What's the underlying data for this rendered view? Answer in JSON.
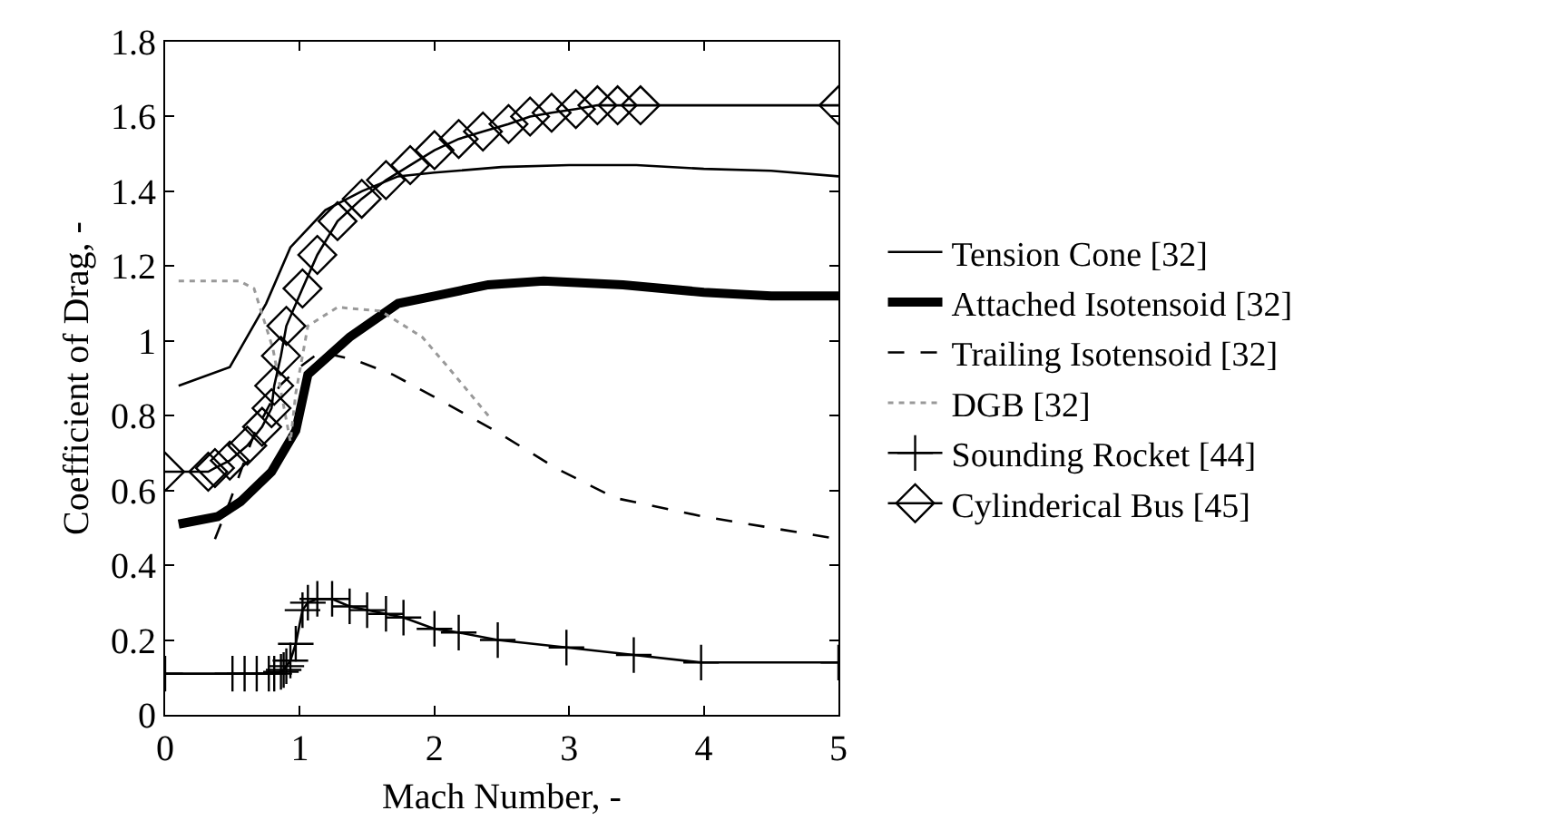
{
  "chart_data": {
    "type": "line",
    "xlabel": "Mach Number, -",
    "ylabel": "Coefficient of Drag, -",
    "xlim": [
      0,
      5
    ],
    "ylim": [
      0,
      1.8
    ],
    "xticks": [
      0,
      1,
      2,
      3,
      4,
      5
    ],
    "yticks": [
      0,
      0.2,
      0.4,
      0.6,
      0.8,
      1,
      1.2,
      1.4,
      1.6,
      1.8
    ],
    "grid": false,
    "legend": "right",
    "series": [
      {
        "name": "Tension Cone [32]",
        "color": "#000000",
        "line_style": "solid",
        "marker": "none",
        "x": [
          0.1,
          0.48,
          0.75,
          0.93,
          1.19,
          1.46,
          1.73,
          2.0,
          2.5,
          3.0,
          3.5,
          4.0,
          4.5,
          5.0
        ],
        "values": [
          0.88,
          0.93,
          1.1,
          1.25,
          1.35,
          1.4,
          1.44,
          1.45,
          1.465,
          1.47,
          1.47,
          1.46,
          1.455,
          1.44
        ]
      },
      {
        "name": "Attached Isotensoid [32]",
        "color": "#000000",
        "line_style": "solid",
        "marker": "none",
        "x": [
          0.1,
          0.39,
          0.56,
          0.79,
          0.97,
          1.06,
          1.37,
          1.73,
          2.0,
          2.4,
          2.81,
          3.4,
          4.0,
          4.5,
          5.0
        ],
        "values": [
          0.51,
          0.53,
          0.57,
          0.65,
          0.76,
          0.91,
          1.01,
          1.1,
          1.12,
          1.15,
          1.16,
          1.15,
          1.13,
          1.12,
          1.12
        ]
      },
      {
        "name": "Trailing Isotensoid [32]",
        "color": "#000000",
        "line_style": "dashed",
        "marker": "none",
        "x": [
          0.37,
          0.48,
          0.66,
          0.85,
          1.0,
          1.15,
          1.4,
          1.69,
          2.0,
          2.45,
          2.9,
          3.34,
          4.0,
          4.5,
          5.0
        ],
        "values": [
          0.47,
          0.57,
          0.75,
          0.88,
          0.93,
          0.97,
          0.95,
          0.91,
          0.85,
          0.76,
          0.66,
          0.58,
          0.53,
          0.5,
          0.47
        ]
      },
      {
        "name": "DGB [32]",
        "color": "#999999",
        "line_style": "dotted",
        "marker": "none",
        "x": [
          0.1,
          0.55,
          0.66,
          0.8,
          0.93,
          0.97,
          1.06,
          1.28,
          1.6,
          1.91,
          2.1,
          2.4
        ],
        "values": [
          1.16,
          1.16,
          1.14,
          0.98,
          0.73,
          0.86,
          1.04,
          1.09,
          1.08,
          1.01,
          0.93,
          0.8
        ]
      },
      {
        "name": "Sounding Rocket [44]",
        "color": "#000000",
        "line_style": "solid",
        "marker": "cross",
        "x": [
          0,
          0.5,
          0.59,
          0.68,
          0.77,
          0.81,
          0.86,
          0.88,
          0.9,
          0.93,
          0.97,
          1.02,
          1.06,
          1.13,
          1.24,
          1.37,
          1.5,
          1.64,
          1.77,
          2.0,
          2.18,
          2.47,
          2.98,
          3.48,
          3.98,
          5.0
        ],
        "values": [
          0.11,
          0.11,
          0.11,
          0.11,
          0.11,
          0.11,
          0.115,
          0.12,
          0.13,
          0.145,
          0.19,
          0.28,
          0.3,
          0.31,
          0.31,
          0.29,
          0.28,
          0.27,
          0.26,
          0.23,
          0.22,
          0.2,
          0.18,
          0.16,
          0.14,
          0.14
        ]
      },
      {
        "name": "Cylinderical Bus [45]",
        "color": "#000000",
        "line_style": "solid",
        "marker": "diamond",
        "x": [
          0,
          0.32,
          0.37,
          0.48,
          0.61,
          0.72,
          0.79,
          0.81,
          0.86,
          0.9,
          1.02,
          1.13,
          1.28,
          1.46,
          1.64,
          1.82,
          2.0,
          2.18,
          2.36,
          2.55,
          2.71,
          2.87,
          3.05,
          3.21,
          3.36,
          3.53,
          5.0
        ],
        "values": [
          0.65,
          0.65,
          0.66,
          0.68,
          0.72,
          0.77,
          0.82,
          0.88,
          0.96,
          1.04,
          1.14,
          1.23,
          1.32,
          1.38,
          1.43,
          1.47,
          1.51,
          1.54,
          1.56,
          1.58,
          1.6,
          1.61,
          1.62,
          1.63,
          1.63,
          1.63,
          1.63
        ]
      }
    ]
  }
}
